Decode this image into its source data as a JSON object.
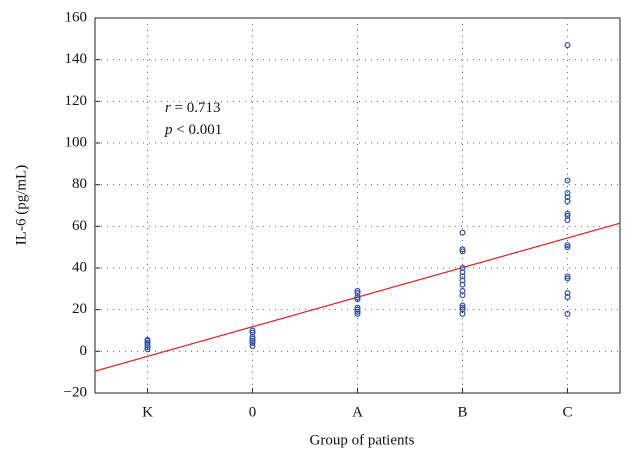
{
  "chart_data": {
    "type": "scatter",
    "x_label": "Group of patients",
    "y_label": "IL-6 (pg/mL)",
    "categories": [
      "K",
      "0",
      "A",
      "B",
      "C"
    ],
    "values": [
      [
        1,
        2,
        3,
        4,
        5,
        5.5
      ],
      [
        2.5,
        4,
        5,
        6,
        7,
        9,
        10
      ],
      [
        18,
        19,
        20,
        21,
        25,
        26,
        28,
        29
      ],
      [
        57,
        49,
        48,
        40,
        38,
        36,
        34,
        32,
        29,
        27,
        22,
        21,
        20,
        18
      ],
      [
        147,
        82,
        76,
        74,
        72,
        66,
        65,
        63,
        51,
        50,
        36,
        35,
        28,
        26,
        18
      ]
    ],
    "color": "#2f4f9f",
    "ylim": [
      -20,
      160
    ],
    "yticks": [
      {
        "value": -20,
        "label": "−20"
      },
      0,
      20,
      40,
      60,
      80,
      100,
      120,
      140,
      160
    ],
    "grid": true,
    "fit": {
      "slope": 14.2,
      "intercept": -2.4,
      "color": "#e02020"
    },
    "annotations": [
      "r = 0.713",
      "p < 0.001"
    ]
  }
}
